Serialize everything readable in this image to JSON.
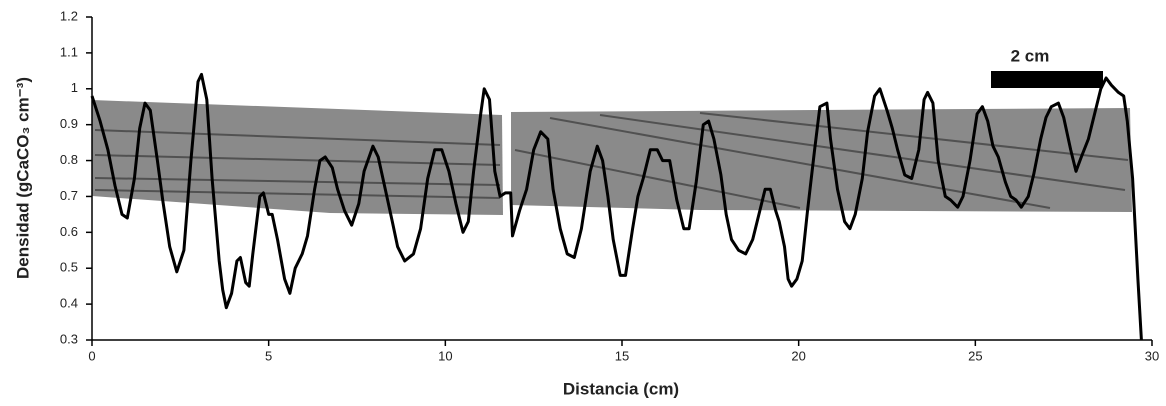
{
  "chart_data": {
    "type": "line",
    "x_label": "Distancia (cm)",
    "y_label": "Densidad (gCaCO₃ cm⁻³)",
    "annotation": "2 cm",
    "xlim": [
      0,
      30
    ],
    "xticks": [
      0,
      5,
      10,
      15,
      20,
      25,
      30
    ],
    "ylim": [
      0.3,
      1.2
    ],
    "yticks": [
      0.3,
      0.4,
      0.5,
      0.6,
      0.7,
      0.8,
      0.9,
      1,
      1.1,
      1.2
    ],
    "grid": false,
    "series": [
      {
        "color": "#000000",
        "x": [
          0,
          0.23,
          0.45,
          0.65,
          0.85,
          1.0,
          1.2,
          1.35,
          1.5,
          1.65,
          1.85,
          2.0,
          2.2,
          2.4,
          2.6,
          2.8,
          3.0,
          3.1,
          3.25,
          3.4,
          3.6,
          3.7,
          3.8,
          3.95,
          4.1,
          4.2,
          4.35,
          4.45,
          4.55,
          4.75,
          4.85,
          5.0,
          5.1,
          5.25,
          5.45,
          5.6,
          5.75,
          5.95,
          6.1,
          6.3,
          6.45,
          6.6,
          6.8,
          6.95,
          7.15,
          7.35,
          7.55,
          7.7,
          7.95,
          8.1,
          8.3,
          8.5,
          8.65,
          8.85,
          9.1,
          9.3,
          9.5,
          9.7,
          9.9,
          10.1,
          10.3,
          10.5,
          10.65,
          10.8,
          11.0,
          11.1,
          11.25,
          11.4,
          11.55,
          11.7,
          11.85,
          11.9,
          12.1,
          12.3,
          12.5,
          12.7,
          12.9,
          13.05,
          13.25,
          13.45,
          13.65,
          13.85,
          14.1,
          14.3,
          14.45,
          14.6,
          14.75,
          14.95,
          15.1,
          15.3,
          15.45,
          15.6,
          15.8,
          16.0,
          16.15,
          16.35,
          16.55,
          16.75,
          16.9,
          17.1,
          17.3,
          17.45,
          17.6,
          17.8,
          17.95,
          18.1,
          18.3,
          18.5,
          18.7,
          18.9,
          19.05,
          19.2,
          19.35,
          19.45,
          19.6,
          19.7,
          19.8,
          19.95,
          20.1,
          20.25,
          20.45,
          20.6,
          20.8,
          20.9,
          21.1,
          21.3,
          21.45,
          21.6,
          21.8,
          21.95,
          22.15,
          22.3,
          22.5,
          22.65,
          22.8,
          23.0,
          23.2,
          23.4,
          23.55,
          23.65,
          23.8,
          23.95,
          24.15,
          24.3,
          24.5,
          24.65,
          24.85,
          25.05,
          25.2,
          25.35,
          25.5,
          25.65,
          25.85,
          26.0,
          26.15,
          26.3,
          26.5,
          26.65,
          26.85,
          27.0,
          27.15,
          27.35,
          27.5,
          27.7,
          27.85,
          28.0,
          28.2,
          28.35,
          28.55,
          28.7,
          28.85,
          29.05,
          29.2,
          29.3,
          29.45,
          29.6,
          29.7
        ],
        "values": [
          0.98,
          0.91,
          0.83,
          0.73,
          0.65,
          0.64,
          0.75,
          0.89,
          0.96,
          0.94,
          0.8,
          0.69,
          0.56,
          0.49,
          0.55,
          0.8,
          1.02,
          1.04,
          0.97,
          0.75,
          0.52,
          0.44,
          0.39,
          0.43,
          0.52,
          0.53,
          0.46,
          0.45,
          0.54,
          0.7,
          0.71,
          0.65,
          0.65,
          0.58,
          0.47,
          0.43,
          0.5,
          0.54,
          0.59,
          0.72,
          0.8,
          0.81,
          0.78,
          0.72,
          0.66,
          0.62,
          0.68,
          0.77,
          0.84,
          0.81,
          0.72,
          0.63,
          0.56,
          0.52,
          0.54,
          0.61,
          0.75,
          0.83,
          0.83,
          0.77,
          0.68,
          0.6,
          0.63,
          0.77,
          0.93,
          1.0,
          0.97,
          0.77,
          0.7,
          0.71,
          0.71,
          0.59,
          0.66,
          0.72,
          0.83,
          0.88,
          0.86,
          0.72,
          0.61,
          0.54,
          0.53,
          0.61,
          0.77,
          0.84,
          0.8,
          0.7,
          0.58,
          0.48,
          0.48,
          0.61,
          0.7,
          0.75,
          0.83,
          0.83,
          0.8,
          0.8,
          0.69,
          0.61,
          0.61,
          0.74,
          0.9,
          0.91,
          0.86,
          0.76,
          0.65,
          0.58,
          0.55,
          0.54,
          0.58,
          0.66,
          0.72,
          0.72,
          0.66,
          0.63,
          0.56,
          0.47,
          0.45,
          0.47,
          0.52,
          0.66,
          0.83,
          0.95,
          0.96,
          0.86,
          0.72,
          0.63,
          0.61,
          0.65,
          0.75,
          0.88,
          0.98,
          1.0,
          0.94,
          0.89,
          0.83,
          0.76,
          0.75,
          0.83,
          0.97,
          0.99,
          0.96,
          0.8,
          0.7,
          0.69,
          0.67,
          0.7,
          0.8,
          0.93,
          0.95,
          0.91,
          0.84,
          0.81,
          0.74,
          0.7,
          0.69,
          0.67,
          0.7,
          0.76,
          0.86,
          0.92,
          0.95,
          0.96,
          0.92,
          0.83,
          0.77,
          0.81,
          0.86,
          0.92,
          1.0,
          1.03,
          1.01,
          0.99,
          0.98,
          0.91,
          0.75,
          0.47,
          0.3
        ]
      }
    ]
  }
}
